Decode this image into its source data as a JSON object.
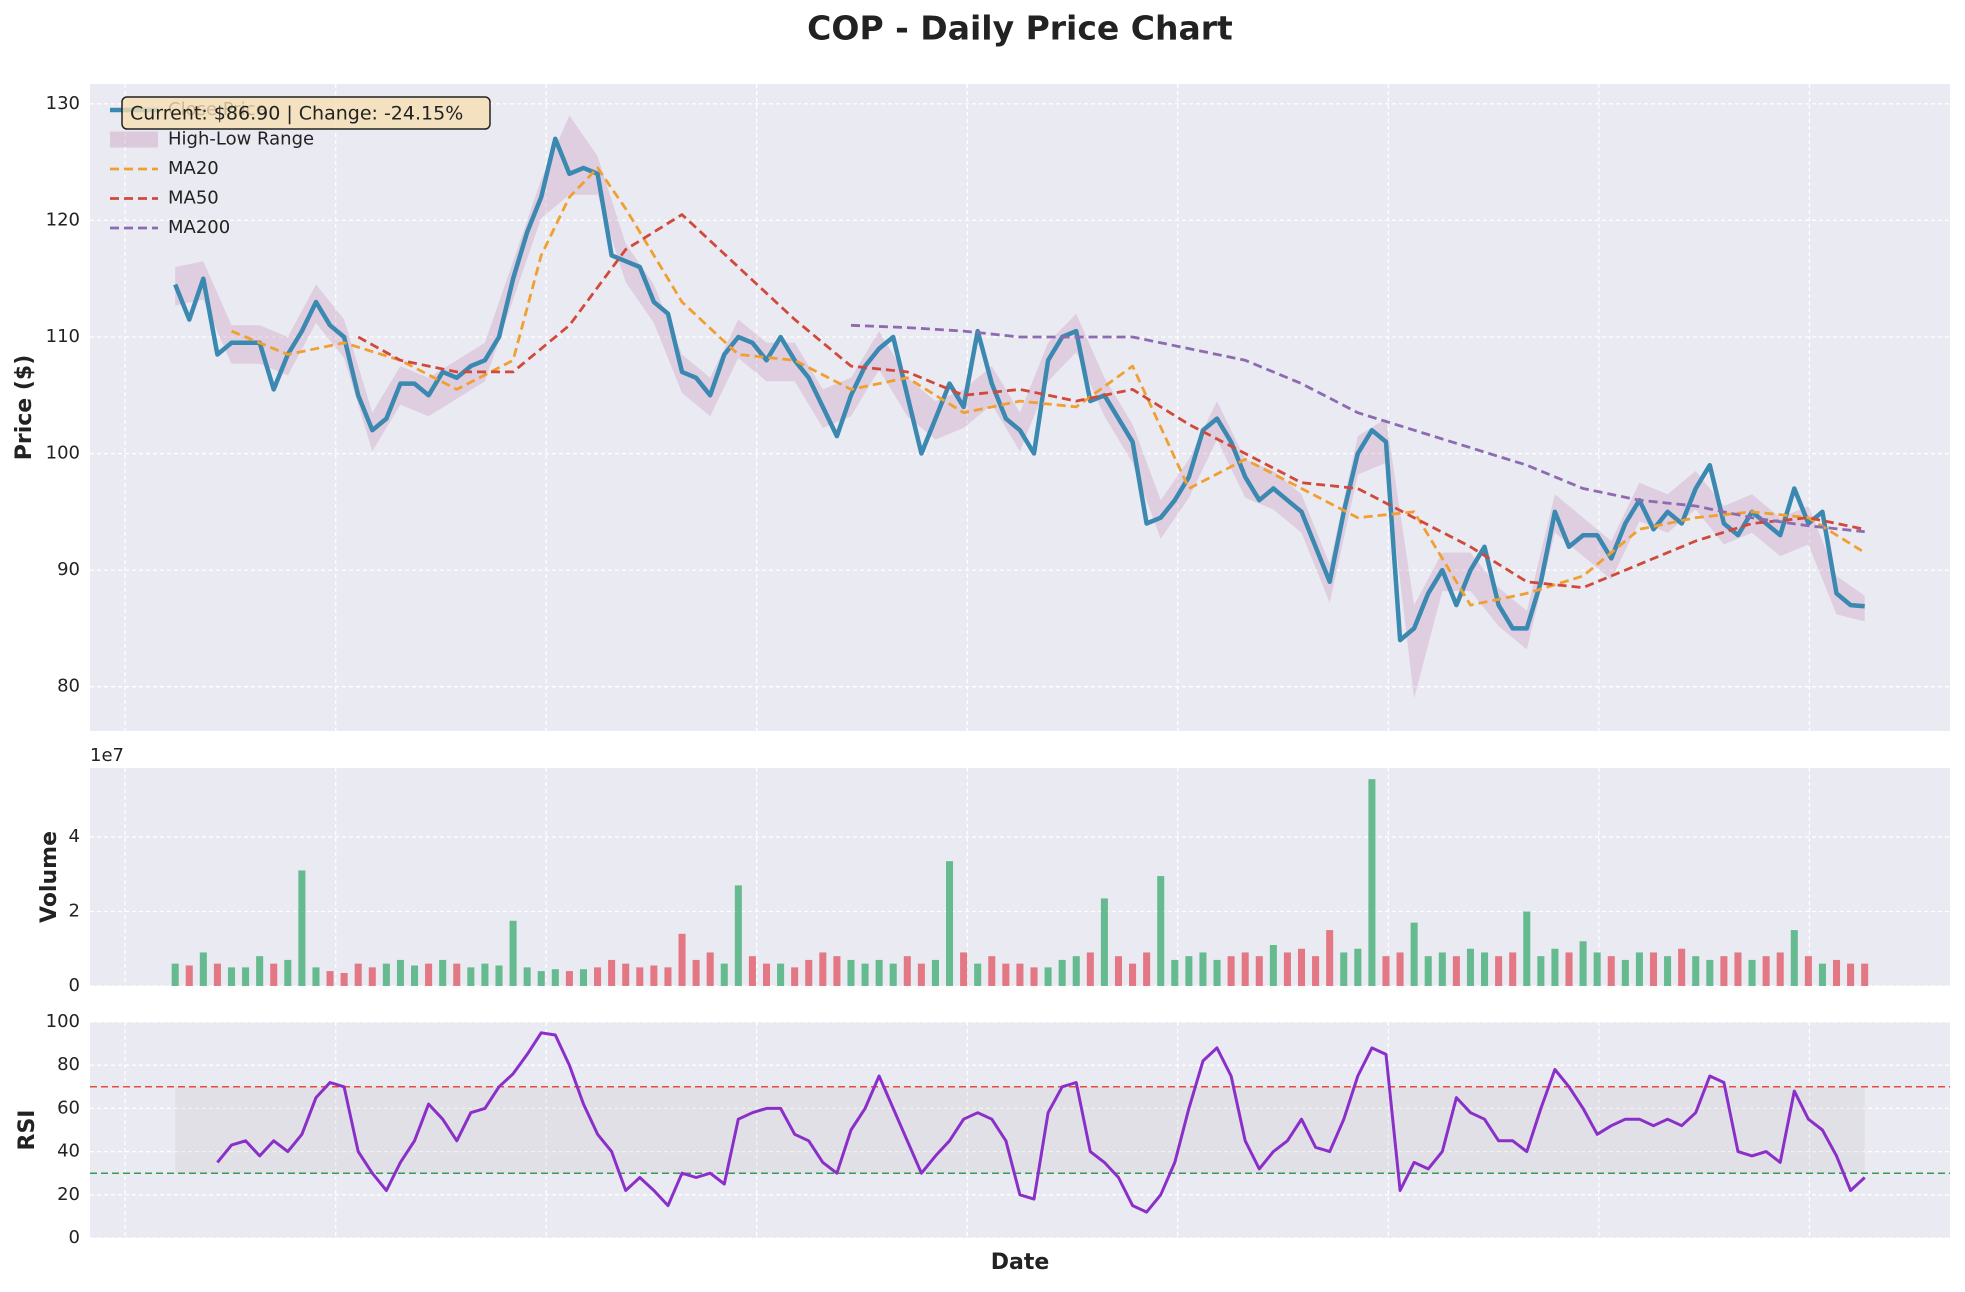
{
  "chart_data": [
    {
      "type": "line",
      "title": "COP - Daily Price Chart",
      "ylabel": "Price ($)",
      "annotation": "Current: $86.90 | Change: -24.15%",
      "xlim": [
        -6.05,
        126.06
      ],
      "xticks": [
        -3.56,
        11.4,
        26.35,
        41.3,
        56.26,
        71.21,
        86.17,
        101.12,
        116.08
      ],
      "ylim": [
        76.2,
        131.7
      ],
      "yticks": [
        80,
        90,
        100,
        110,
        120,
        130
      ],
      "grid": true,
      "legend": "upper left",
      "series": [
        {
          "name": "Close Price",
          "color": "#3b88b0",
          "values": [
            114.5,
            111.5,
            115,
            108.5,
            109.5,
            109.5,
            109.5,
            105.5,
            108.5,
            110.5,
            113,
            111,
            110,
            105,
            102,
            103,
            106,
            106,
            105,
            107,
            106.5,
            107.5,
            108,
            110,
            115,
            119,
            122,
            127,
            124,
            124.5,
            124,
            117,
            116.5,
            116,
            113,
            112,
            107,
            106.5,
            105,
            108.5,
            110,
            109.5,
            108,
            110,
            108,
            106.5,
            104,
            101.5,
            105,
            107.5,
            109,
            110,
            105,
            100,
            103,
            106,
            104,
            110.5,
            106,
            103,
            102,
            100,
            108,
            110,
            110.5,
            104.5,
            105,
            103,
            101,
            94,
            94.5,
            96,
            98,
            102,
            103,
            101,
            98,
            96,
            97,
            96,
            95,
            92,
            89,
            95,
            100,
            102,
            101,
            84,
            85,
            88,
            90,
            87,
            90,
            92,
            87,
            85,
            85,
            89,
            95,
            92,
            93,
            93,
            91,
            94,
            96,
            93.5,
            95,
            94,
            97,
            99,
            94,
            93,
            95,
            94,
            93,
            97,
            94,
            95,
            88,
            87,
            86.9
          ]
        },
        {
          "name": "High-Low Range",
          "color": "#c48fb5",
          "x": [
            0,
            2,
            4,
            6,
            8,
            10,
            12,
            14,
            16,
            18,
            20,
            22,
            24,
            26,
            28,
            30,
            32,
            34,
            36,
            38,
            40,
            42,
            44,
            46,
            48,
            50,
            52,
            54,
            56,
            58,
            60,
            62,
            64,
            66,
            68,
            70,
            72,
            74,
            76,
            78,
            80,
            82,
            84,
            86,
            88,
            90,
            92,
            94,
            96,
            98,
            100,
            102,
            104,
            106,
            108,
            110,
            112,
            114,
            116,
            118,
            120
          ],
          "high": [
            116,
            116.5,
            111,
            111,
            110,
            114.5,
            111.5,
            103.5,
            107.5,
            106.5,
            108,
            109.5,
            116.5,
            123.5,
            129,
            125.5,
            118,
            114.5,
            108.5,
            106.5,
            111.5,
            109.5,
            109.5,
            105.5,
            106.5,
            110.5,
            106.5,
            104.5,
            105.5,
            107.5,
            103.5,
            109.5,
            112,
            106.5,
            102.5,
            96,
            99.5,
            104.5,
            99.5,
            98.5,
            96.5,
            90.5,
            101.5,
            103,
            87,
            91.5,
            91.5,
            88.5,
            86.5,
            96.5,
            94.5,
            92.5,
            97.5,
            96.5,
            98.5,
            95.5,
            96.5,
            94.5,
            95.5,
            89.5,
            87.8
          ],
          "low": [
            112.7,
            113.2,
            107.7,
            107.7,
            106.7,
            111.2,
            108.2,
            100.2,
            104.2,
            103.2,
            104.7,
            106.2,
            113.2,
            120.2,
            122.2,
            122.2,
            114.7,
            111.2,
            105.2,
            103.2,
            108.2,
            106.2,
            106.2,
            102.2,
            103.2,
            107.2,
            103.2,
            101.2,
            102.2,
            104.2,
            100.2,
            106.2,
            108.7,
            103.2,
            99.2,
            92.7,
            96.2,
            101.2,
            96.2,
            95.2,
            93.2,
            87.2,
            98.2,
            99.2,
            79,
            88.2,
            88.2,
            85.2,
            83.2,
            93.2,
            91.2,
            89.2,
            94.2,
            93.2,
            95.2,
            92.2,
            93.2,
            91.2,
            92.2,
            86.2,
            85.6
          ]
        },
        {
          "name": "MA20",
          "color": "#f0a030",
          "dashed": true,
          "x": [
            4,
            8,
            12,
            16,
            20,
            24,
            26,
            28,
            30,
            32,
            34,
            36,
            40,
            44,
            48,
            52,
            56,
            60,
            64,
            68,
            72,
            76,
            80,
            84,
            88,
            92,
            96,
            100,
            104,
            108,
            112,
            116,
            120
          ],
          "values": [
            110.5,
            108.5,
            109.5,
            108,
            105.5,
            108,
            117,
            122,
            124.5,
            121,
            117,
            113,
            108.5,
            108,
            105.5,
            106.5,
            103.5,
            104.5,
            104,
            107.5,
            97,
            99.5,
            97,
            94.5,
            95,
            87,
            88,
            89.5,
            93.5,
            94.5,
            95,
            94.5,
            91.5
          ]
        },
        {
          "name": "MA50",
          "color": "#d1493a",
          "dashed": true,
          "x": [
            13,
            16,
            20,
            24,
            28,
            32,
            36,
            40,
            44,
            48,
            52,
            56,
            60,
            64,
            68,
            72,
            76,
            80,
            84,
            88,
            92,
            96,
            100,
            104,
            108,
            112,
            116,
            120
          ],
          "values": [
            110,
            108,
            107,
            107,
            111,
            117.5,
            120.5,
            116,
            111.5,
            107.5,
            107,
            105,
            105.5,
            104.5,
            105.5,
            102.5,
            100,
            97.5,
            97,
            94.5,
            92,
            89,
            88.5,
            90.5,
            92.5,
            94,
            94.5,
            93.5
          ]
        },
        {
          "name": "MA200",
          "color": "#8e6bb0",
          "dashed": true,
          "x": [
            48,
            52,
            56,
            60,
            64,
            68,
            72,
            76,
            80,
            84,
            88,
            92,
            96,
            100,
            104,
            108,
            112,
            116,
            120
          ],
          "values": [
            111,
            110.8,
            110.5,
            110,
            110,
            110,
            109,
            108,
            106,
            103.5,
            102,
            100.5,
            99,
            97,
            96,
            95.5,
            94.5,
            93.8,
            93.3
          ]
        }
      ]
    },
    {
      "type": "bar",
      "ylabel": "Volume",
      "offset_label": "1e7",
      "xlim": [
        -6.05,
        126.06
      ],
      "xticks": [
        -3.56,
        11.4,
        26.35,
        41.3,
        56.26,
        71.21,
        86.17,
        101.12,
        116.08
      ],
      "ylim": [
        0,
        5.85
      ],
      "yticks": [
        0,
        2,
        4
      ],
      "grid": true,
      "up_color": "#3aaa6e",
      "down_color": "#e0505e",
      "values": [
        0.6,
        0.55,
        0.9,
        0.6,
        0.5,
        0.5,
        0.8,
        0.6,
        0.7,
        3.1,
        0.5,
        0.4,
        0.35,
        0.6,
        0.5,
        0.6,
        0.7,
        0.55,
        0.6,
        0.7,
        0.6,
        0.5,
        0.6,
        0.55,
        1.75,
        0.5,
        0.4,
        0.45,
        0.4,
        0.45,
        0.5,
        0.7,
        0.6,
        0.5,
        0.55,
        0.5,
        1.4,
        0.7,
        0.9,
        0.6,
        2.7,
        0.8,
        0.6,
        0.6,
        0.5,
        0.7,
        0.9,
        0.8,
        0.7,
        0.6,
        0.7,
        0.6,
        0.8,
        0.6,
        0.7,
        3.35,
        0.9,
        0.6,
        0.8,
        0.6,
        0.6,
        0.5,
        0.5,
        0.7,
        0.8,
        0.9,
        2.35,
        0.8,
        0.6,
        0.9,
        2.95,
        0.7,
        0.8,
        0.9,
        0.7,
        0.8,
        0.9,
        0.8,
        1.1,
        0.9,
        1,
        0.8,
        1.5,
        0.9,
        1,
        5.55,
        0.8,
        0.9,
        1.7,
        0.8,
        0.9,
        0.8,
        1,
        0.9,
        0.8,
        0.9,
        2,
        0.8,
        1,
        0.9,
        1.2,
        0.9,
        0.8,
        0.7,
        0.9,
        0.9,
        0.8,
        1,
        0.8,
        0.7,
        0.8,
        0.9,
        0.7,
        0.8,
        0.9,
        1.5,
        0.8,
        0.6,
        0.7,
        0.6,
        0.6
      ]
    },
    {
      "type": "line",
      "ylabel": "RSI",
      "xlabel": "Date",
      "xlim": [
        -6.05,
        126.06
      ],
      "xticks": [
        -3.56,
        11.4,
        26.35,
        41.3,
        56.26,
        71.21,
        86.17,
        101.12,
        116.08
      ],
      "ylim": [
        0,
        100
      ],
      "yticks": [
        0,
        20,
        40,
        60,
        80,
        100
      ],
      "grid": true,
      "overbought": 70,
      "overbought_color": "#e74c3c",
      "oversold": 30,
      "oversold_color": "#3a9a55",
      "series": [
        {
          "color": "#8b2fc9",
          "values": [
            null,
            null,
            null,
            35,
            43,
            45,
            38,
            45,
            40,
            48,
            65,
            72,
            70,
            40,
            30,
            22,
            35,
            45,
            62,
            55,
            45,
            58,
            60,
            70,
            76,
            85,
            95,
            94,
            80,
            62,
            48,
            40,
            22,
            28,
            22,
            15,
            30,
            28,
            30,
            25,
            55,
            58,
            60,
            60,
            48,
            45,
            35,
            30,
            50,
            60,
            75,
            60,
            45,
            30,
            38,
            45,
            55,
            58,
            55,
            45,
            20,
            18,
            58,
            70,
            72,
            40,
            35,
            28,
            15,
            12,
            20,
            35,
            60,
            82,
            88,
            75,
            45,
            32,
            40,
            45,
            55,
            42,
            40,
            55,
            75,
            88,
            85,
            22,
            35,
            32,
            40,
            65,
            58,
            55,
            45,
            45,
            40,
            60,
            78,
            70,
            60,
            48,
            52,
            55,
            55,
            52,
            55,
            52,
            58,
            75,
            72,
            40,
            38,
            40,
            35,
            68,
            55,
            50,
            38,
            22,
            28
          ]
        }
      ]
    }
  ]
}
